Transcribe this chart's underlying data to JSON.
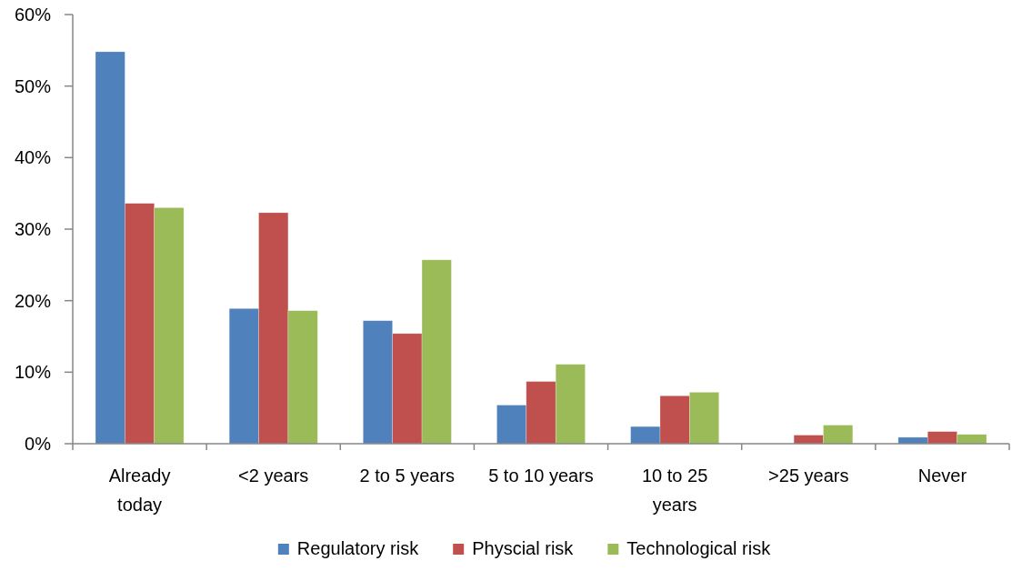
{
  "chart_data": {
    "type": "bar",
    "categories": [
      "Already today",
      "<2 years",
      "2 to 5 years",
      "5 to 10 years",
      "10 to 25 years",
      ">25 years",
      "Never"
    ],
    "series": [
      {
        "name": "Regulatory risk",
        "color": "#4f81bd",
        "values": [
          54.8,
          18.9,
          17.2,
          5.4,
          2.4,
          0,
          0.9
        ]
      },
      {
        "name": "Physcial risk",
        "color": "#c0504d",
        "values": [
          33.6,
          32.3,
          15.4,
          8.7,
          6.7,
          1.2,
          1.7
        ]
      },
      {
        "name": "Technological risk",
        "color": "#9bbb59",
        "values": [
          33.0,
          18.6,
          25.7,
          11.1,
          7.2,
          2.6,
          1.3
        ]
      }
    ],
    "ylim": [
      0,
      60
    ],
    "yticks": [
      {
        "value": 0,
        "label": "0%"
      },
      {
        "value": 10,
        "label": "10%"
      },
      {
        "value": 20,
        "label": "20%"
      },
      {
        "value": 30,
        "label": "30%"
      },
      {
        "value": 40,
        "label": "40%"
      },
      {
        "value": 50,
        "label": "50%"
      },
      {
        "value": 60,
        "label": "60%"
      }
    ],
    "grid": false,
    "legend": "bottom"
  }
}
